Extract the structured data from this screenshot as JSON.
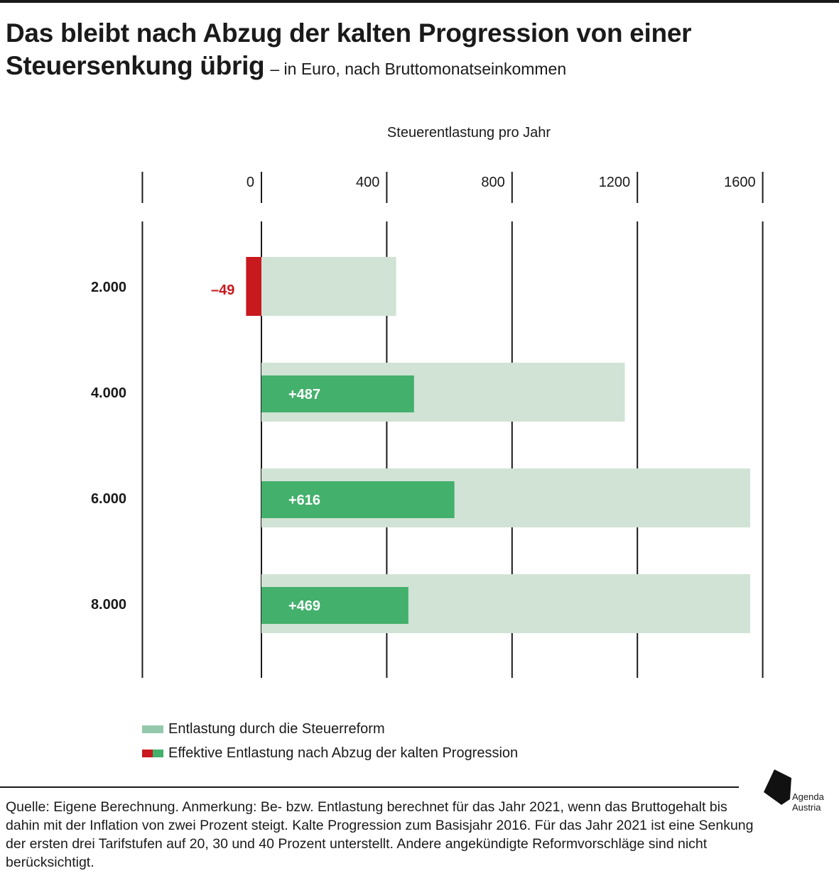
{
  "header": {
    "title": "Das bleibt nach Abzug der kalten Progression von einer Steuersenkung übrig",
    "subtitle": "– in Euro, nach Bruttomonatseinkommen"
  },
  "chart_data": {
    "type": "bar",
    "orientation": "horizontal",
    "xlabel": "Steuerentlastung pro Jahr",
    "ylabel": "",
    "xlim": [
      -380,
      1600
    ],
    "xticks": [
      0,
      400,
      800,
      1200,
      1600
    ],
    "xtick_labels": [
      "0",
      "400",
      "800",
      "1200",
      "1600"
    ],
    "grid": true,
    "categories": [
      "2.000",
      "4.000",
      "6.000",
      "8.000"
    ],
    "series": [
      {
        "name": "Entlastung durch die Steuerreform",
        "values": [
          430,
          1160,
          1560,
          1560
        ],
        "color": "#d0e3d5"
      },
      {
        "name": "Effektive Entlastung nach Abzug der kalten Progression",
        "values": [
          -49,
          487,
          616,
          469
        ],
        "data_labels": [
          "–49",
          "+487",
          "+616",
          "+469"
        ],
        "color_positive": "#43b06c",
        "color_negative": "#c8191e"
      }
    ],
    "legend_position": "bottom-left"
  },
  "legend": [
    {
      "label": "Entlastung durch die Steuerreform"
    },
    {
      "label": "Effektive Entlastung nach Abzug der kalten Progression"
    }
  ],
  "footnote": "Quelle: Eigene Berechnung. Anmerkung: Be- bzw. Entlastung berechnet für das Jahr 2021, wenn das Bruttogehalt bis dahin mit der Inflation von zwei Prozent steigt. Kalte Progression zum Basisjahr 2016. Für das Jahr 2021 ist eine Senkung der ersten drei Tarifstufen auf 20, 30 und 40 Prozent unterstellt. Andere angekündigte Reformvorschläge sind nicht berücksichtigt.",
  "logo": {
    "line1": "Agenda",
    "line2": "Austria"
  }
}
